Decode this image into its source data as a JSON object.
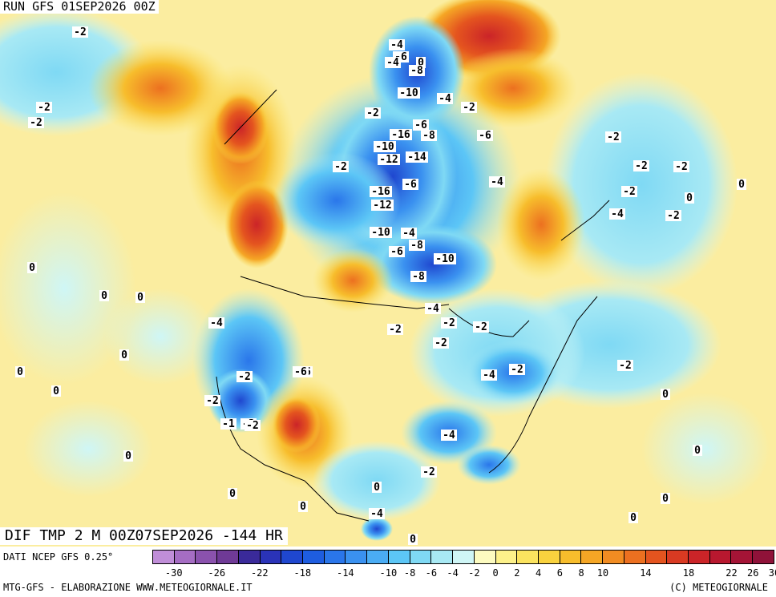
{
  "header": {
    "run_label": "RUN GFS 01SEP2026 00Z",
    "product_label": "DIF TMP 2 M 00Z07SEP2026 -144 HR"
  },
  "footer": {
    "data_source": "DATI NCEP GFS 0.25°",
    "credits": "MTG-GFS - ELABORAZIONE WWW.METEOGIORNALE.IT",
    "copyright": "(C) METEOGIORNALE"
  },
  "colors": {
    "swatches": [
      "#c08ed8",
      "#a56dc3",
      "#8a52ad",
      "#6f3a96",
      "#3a2a9a",
      "#2a33b8",
      "#1f47cf",
      "#1e5de0",
      "#2a76ea",
      "#3a91f0",
      "#4aacf4",
      "#5cc6f6",
      "#7fd9f4",
      "#a8e9f4",
      "#cff6f6",
      "#fdfbc0",
      "#fdf18a",
      "#fbe35f",
      "#f9d23e",
      "#f7bd2c",
      "#f5a625",
      "#f18c22",
      "#ec7020",
      "#e4541f",
      "#d93a22",
      "#cb2428",
      "#b8182f",
      "#a41436",
      "#8f1239"
    ],
    "ocean_base": "#fbf3a0",
    "land_cold": "#5cc6f6",
    "land_warm": "#f7bd2c"
  },
  "scale_ticks": [
    "-30",
    "-26",
    "-22",
    "-18",
    "-14",
    "-10",
    "-8",
    "-6",
    "-4",
    "-2",
    "0",
    "2",
    "4",
    "6",
    "8",
    "10",
    "14",
    "18",
    "22",
    "26",
    "30"
  ],
  "map_labels": [
    "-2",
    "-2",
    "-2",
    "-4",
    "-6",
    "-4",
    "0",
    "-8",
    "-10",
    "-4",
    "-2",
    "-2",
    "-16",
    "-6",
    "-8",
    "-10",
    "-12",
    "-14",
    "-2",
    "-6",
    "-16",
    "-12",
    "-10",
    "-4",
    "-8",
    "-6",
    "-10",
    "-8",
    "-4",
    "-2",
    "-2",
    "-2",
    "-2",
    "-4",
    "-6",
    "-2",
    "0",
    "0",
    "0",
    "0",
    "0",
    "0",
    "-2",
    "-2",
    "-6",
    "-4",
    "-2",
    "-2",
    "0",
    "0",
    "-2",
    "-4",
    "-4",
    "-2",
    "-2",
    "0",
    "0",
    "0",
    "0",
    "-4",
    "-2",
    "0",
    "-4",
    "-6",
    "-2",
    "-2",
    "-1",
    "-2",
    "0",
    "0",
    "0",
    "0"
  ]
}
